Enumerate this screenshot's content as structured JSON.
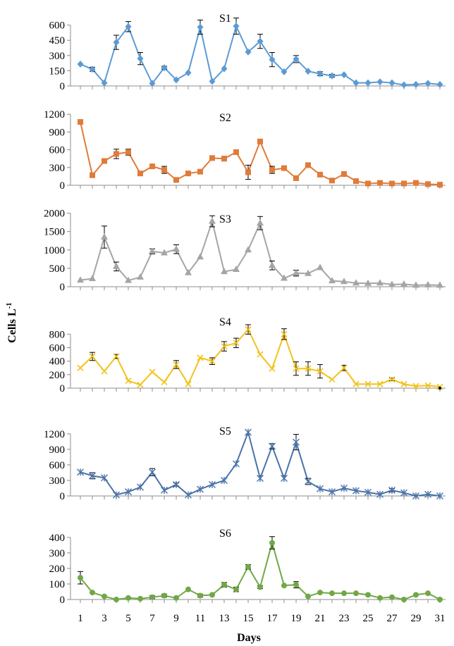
{
  "chart_data": {
    "type": "line",
    "xlabel": "Days",
    "ylabel": "Cells L",
    "ylabel_superscript": "-1",
    "x": [
      1,
      2,
      3,
      4,
      5,
      6,
      7,
      8,
      9,
      10,
      11,
      12,
      13,
      14,
      15,
      16,
      17,
      18,
      19,
      20,
      21,
      22,
      23,
      24,
      25,
      26,
      27,
      28,
      29,
      30,
      31
    ],
    "x_tick_labels": [
      "1",
      "3",
      "5",
      "7",
      "9",
      "11",
      "13",
      "15",
      "17",
      "19",
      "21",
      "23",
      "25",
      "27",
      "29",
      "31"
    ],
    "panels": [
      {
        "name": "S1",
        "color": "#5b9bd5",
        "marker": "diamond",
        "yticks": [
          0,
          150,
          300,
          450,
          600
        ],
        "ylim": [
          0,
          660
        ],
        "values": [
          215,
          165,
          30,
          430,
          585,
          270,
          25,
          180,
          60,
          130,
          580,
          45,
          170,
          590,
          335,
          440,
          260,
          140,
          265,
          145,
          120,
          100,
          110,
          30,
          30,
          40,
          30,
          10,
          15,
          25,
          15
        ],
        "errors": [
          0,
          20,
          0,
          70,
          50,
          60,
          0,
          15,
          0,
          0,
          70,
          0,
          0,
          80,
          0,
          70,
          70,
          0,
          35,
          0,
          20,
          15,
          0,
          0,
          0,
          0,
          0,
          0,
          0,
          0,
          0
        ]
      },
      {
        "name": "S2",
        "color": "#e07b39",
        "marker": "square",
        "yticks": [
          0,
          300,
          600,
          900,
          1200
        ],
        "ylim": [
          0,
          1250
        ],
        "values": [
          1070,
          170,
          410,
          530,
          560,
          200,
          320,
          260,
          90,
          200,
          230,
          460,
          450,
          560,
          220,
          740,
          260,
          290,
          120,
          340,
          180,
          80,
          190,
          70,
          30,
          40,
          30,
          30,
          40,
          20,
          10
        ],
        "errors": [
          0,
          30,
          0,
          80,
          50,
          0,
          0,
          60,
          0,
          0,
          0,
          0,
          40,
          0,
          120,
          0,
          60,
          0,
          0,
          0,
          0,
          0,
          0,
          0,
          0,
          0,
          0,
          0,
          0,
          0,
          0
        ]
      },
      {
        "name": "S3",
        "color": "#a5a5a5",
        "marker": "triangle",
        "yticks": [
          0,
          500,
          1000,
          1500,
          2000
        ],
        "ylim": [
          0,
          2050
        ],
        "values": [
          180,
          220,
          1350,
          550,
          170,
          260,
          960,
          920,
          1020,
          380,
          810,
          1780,
          410,
          470,
          1000,
          1730,
          580,
          230,
          370,
          360,
          520,
          160,
          140,
          100,
          90,
          100,
          60,
          70,
          40,
          50,
          40
        ],
        "errors": [
          0,
          0,
          300,
          120,
          0,
          0,
          70,
          0,
          120,
          0,
          0,
          150,
          0,
          0,
          0,
          180,
          120,
          0,
          80,
          0,
          0,
          0,
          0,
          0,
          0,
          0,
          0,
          0,
          0,
          0,
          0
        ]
      },
      {
        "name": "S4",
        "color": "#f2c21a",
        "marker": "x",
        "yticks": [
          0,
          200,
          400,
          600,
          800
        ],
        "ylim": [
          0,
          960
        ],
        "values": [
          300,
          470,
          250,
          470,
          110,
          50,
          240,
          90,
          350,
          60,
          450,
          400,
          620,
          670,
          870,
          500,
          290,
          800,
          290,
          290,
          250,
          130,
          300,
          60,
          60,
          60,
          130,
          60,
          30,
          40,
          20
        ],
        "errors": [
          0,
          60,
          0,
          30,
          0,
          0,
          0,
          0,
          60,
          0,
          0,
          50,
          70,
          70,
          70,
          0,
          0,
          80,
          100,
          100,
          100,
          0,
          40,
          0,
          0,
          0,
          20,
          0,
          0,
          0,
          0
        ],
        "extra_marker": {
          "x": 31,
          "value": 0
        }
      },
      {
        "name": "S5",
        "color": "#4a73a8",
        "marker": "star",
        "yticks": [
          0,
          300,
          600,
          900,
          1200
        ],
        "ylim": [
          0,
          1320
        ],
        "values": [
          460,
          390,
          350,
          20,
          80,
          170,
          460,
          110,
          220,
          20,
          130,
          220,
          300,
          620,
          1230,
          340,
          960,
          340,
          1040,
          280,
          140,
          80,
          150,
          100,
          70,
          30,
          110,
          60,
          0,
          30,
          0
        ],
        "errors": [
          0,
          60,
          0,
          0,
          0,
          0,
          70,
          0,
          30,
          0,
          0,
          0,
          0,
          0,
          0,
          0,
          50,
          0,
          150,
          60,
          0,
          0,
          0,
          0,
          0,
          0,
          30,
          0,
          0,
          0,
          0
        ]
      },
      {
        "name": "S6",
        "color": "#70a845",
        "marker": "circle",
        "yticks": [
          0,
          100,
          200,
          300,
          400
        ],
        "ylim": [
          0,
          440
        ],
        "values": [
          140,
          45,
          20,
          0,
          10,
          5,
          15,
          25,
          10,
          65,
          25,
          30,
          95,
          65,
          210,
          80,
          365,
          90,
          95,
          20,
          45,
          40,
          40,
          40,
          30,
          10,
          15,
          0,
          30,
          40,
          0
        ],
        "errors": [
          40,
          0,
          0,
          0,
          0,
          0,
          10,
          10,
          0,
          0,
          10,
          0,
          15,
          15,
          15,
          10,
          40,
          0,
          20,
          0,
          0,
          0,
          0,
          0,
          0,
          0,
          0,
          0,
          0,
          0,
          0
        ]
      }
    ]
  }
}
